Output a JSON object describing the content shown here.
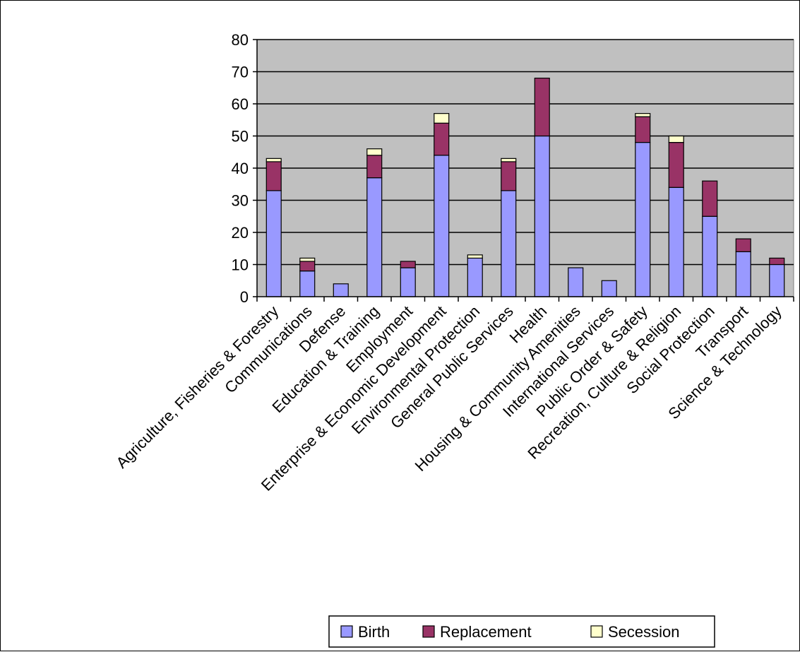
{
  "chart_data": {
    "type": "bar",
    "stacked": true,
    "categories": [
      "Agriculture, Fisheries & Forestry",
      "Communications",
      "Defense",
      "Education & Training",
      "Employment",
      "Enterprise & Economic Development",
      "Environmental Protection",
      "General Public Services",
      "Health",
      "Housing & Community Amenities",
      "International Services",
      "Public Order & Safety",
      "Recreation, Culture & Religion",
      "Social Protection",
      "Transport",
      "Science & Technology"
    ],
    "series": [
      {
        "name": "Birth",
        "color": "#9999ff",
        "values": [
          33,
          8,
          4,
          37,
          9,
          44,
          12,
          33,
          50,
          9,
          5,
          48,
          34,
          25,
          14,
          10
        ]
      },
      {
        "name": "Replacement",
        "color": "#993366",
        "values": [
          9,
          3,
          0,
          7,
          2,
          10,
          0,
          9,
          18,
          0,
          0,
          8,
          14,
          11,
          4,
          2
        ]
      },
      {
        "name": "Secession",
        "color": "#ffffcc",
        "values": [
          1,
          1,
          0,
          2,
          0,
          3,
          1,
          1,
          0,
          0,
          0,
          1,
          2,
          0,
          0,
          0
        ]
      }
    ],
    "ylim": [
      0,
      80
    ],
    "yticks": [
      0,
      10,
      20,
      30,
      40,
      50,
      60,
      70,
      80
    ],
    "grid": true,
    "plot_background": "#c0c0c0",
    "legend_position": "bottom",
    "title": "",
    "xlabel": "",
    "ylabel": ""
  }
}
